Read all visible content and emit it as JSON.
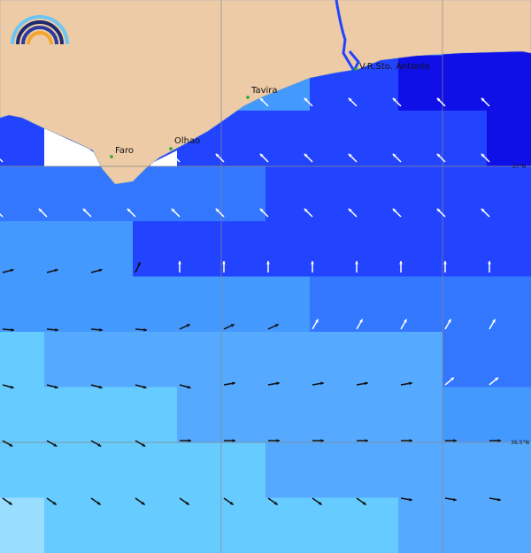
{
  "places": [
    {
      "label": "Faro"
    },
    {
      "label": "Olhao"
    },
    {
      "label": "Tavira"
    },
    {
      "label": "V.R.Sto. Antonio"
    }
  ],
  "grid_labels": [
    "37°N",
    "36.5°N"
  ]
}
